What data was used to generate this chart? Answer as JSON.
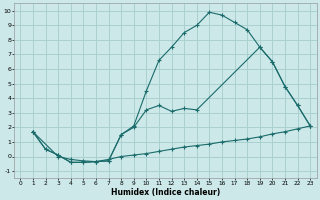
{
  "xlabel": "Humidex (Indice chaleur)",
  "bg_color": "#cce8e8",
  "grid_color": "#aad0d0",
  "line_color": "#1a6b6b",
  "xlim": [
    -0.5,
    23.5
  ],
  "ylim": [
    -1.5,
    10.5
  ],
  "xticks": [
    0,
    1,
    2,
    3,
    4,
    5,
    6,
    7,
    8,
    9,
    10,
    11,
    12,
    13,
    14,
    15,
    16,
    17,
    18,
    19,
    20,
    21,
    22,
    23
  ],
  "yticks": [
    -1,
    0,
    1,
    2,
    3,
    4,
    5,
    6,
    7,
    8,
    9,
    10
  ],
  "line1_x": [
    1,
    2,
    3,
    4,
    5,
    6,
    7,
    8,
    9,
    10,
    11,
    12,
    13,
    14,
    15,
    16,
    17,
    18,
    19,
    20,
    21,
    22,
    23
  ],
  "line1_y": [
    1.7,
    0.5,
    0.1,
    -0.4,
    -0.4,
    -0.35,
    -0.3,
    1.5,
    2.1,
    4.5,
    6.6,
    7.5,
    8.5,
    9.0,
    9.9,
    9.7,
    9.2,
    8.7,
    7.5,
    6.5,
    4.8,
    3.5,
    2.1
  ],
  "line2_x": [
    1,
    2,
    3,
    4,
    5,
    6,
    7,
    8,
    9,
    10,
    11,
    12,
    13,
    14,
    19,
    20,
    21,
    22,
    23
  ],
  "line2_y": [
    1.7,
    0.5,
    0.1,
    -0.4,
    -0.4,
    -0.35,
    -0.3,
    1.5,
    2.0,
    3.2,
    3.5,
    3.1,
    3.3,
    3.2,
    7.5,
    6.5,
    4.8,
    3.5,
    2.1
  ],
  "line3_x": [
    1,
    3,
    4,
    5,
    6,
    7,
    8,
    9,
    10,
    11,
    12,
    13,
    14,
    15,
    16,
    17,
    18,
    19,
    20,
    21,
    22,
    23
  ],
  "line3_y": [
    1.7,
    0.0,
    -0.2,
    -0.3,
    -0.35,
    -0.2,
    0.0,
    0.1,
    0.2,
    0.35,
    0.5,
    0.65,
    0.75,
    0.85,
    1.0,
    1.1,
    1.2,
    1.35,
    1.55,
    1.7,
    1.9,
    2.1
  ]
}
